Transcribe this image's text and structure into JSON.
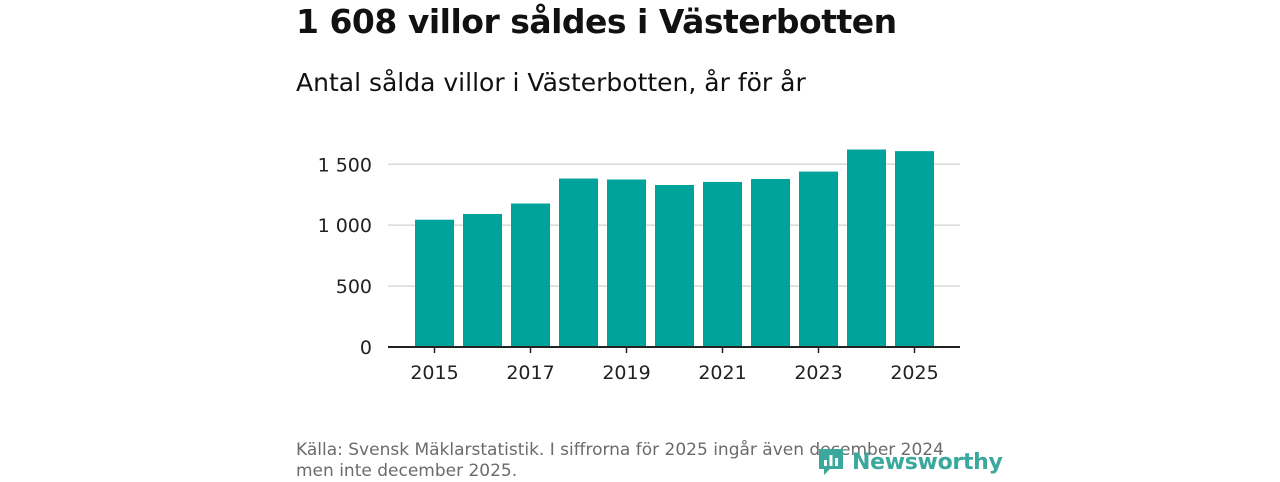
{
  "header": {
    "title": "1 608 villor såldes i Västerbotten",
    "subtitle": "Antal sålda villor i Västerbotten, år för år"
  },
  "footer": {
    "source": "Källa: Svensk Mäklarstatistik. I siffrorna för 2025 ingår även december 2024 men inte december 2025.",
    "brand": "Newsworthy"
  },
  "colors": {
    "bar": "#00a39a",
    "grid": "#d9d9d9",
    "axis": "#222222",
    "brand": "#3aa89c"
  },
  "chart_data": {
    "type": "bar",
    "title": "Antal sålda villor i Västerbotten, år för år",
    "xlabel": "",
    "ylabel": "",
    "categories": [
      "2015",
      "2016",
      "2017",
      "2018",
      "2019",
      "2020",
      "2021",
      "2022",
      "2023",
      "2024",
      "2025"
    ],
    "values": [
      1045,
      1092,
      1178,
      1383,
      1375,
      1330,
      1355,
      1379,
      1440,
      1621,
      1608
    ],
    "ylim": [
      0,
      1650
    ],
    "yticks": [
      0,
      500,
      1000,
      1500
    ],
    "ytick_labels": [
      "0",
      "500",
      "1 000",
      "1 500"
    ],
    "xticks": [
      "2015",
      "2017",
      "2019",
      "2021",
      "2023",
      "2025"
    ],
    "grid": true
  }
}
